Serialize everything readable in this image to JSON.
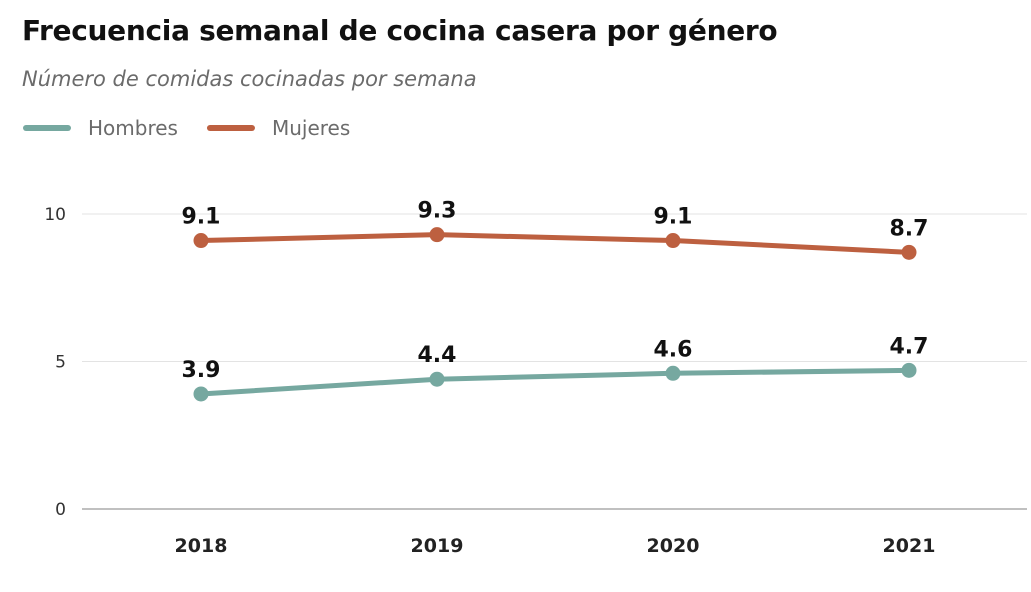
{
  "chart_data": {
    "type": "line",
    "title": "Frecuencia semanal de cocina casera por género",
    "subtitle": "Número de comidas cocinadas por semana",
    "categories": [
      "2018",
      "2019",
      "2020",
      "2021"
    ],
    "series": [
      {
        "name": "Hombres",
        "color": "#76a8a0",
        "values": [
          3.9,
          4.4,
          4.6,
          4.7
        ],
        "labels": [
          "3.9",
          "4.4",
          "4.6",
          "4.7"
        ]
      },
      {
        "name": "Mujeres",
        "color": "#bd6040",
        "values": [
          9.1,
          9.3,
          9.1,
          8.7
        ],
        "labels": [
          "9.1",
          "9.3",
          "9.1",
          "8.7"
        ]
      }
    ],
    "yticks": [
      "0",
      "5",
      "10"
    ],
    "ylim": [
      0,
      10
    ],
    "legend": "top-left",
    "grid": true
  }
}
